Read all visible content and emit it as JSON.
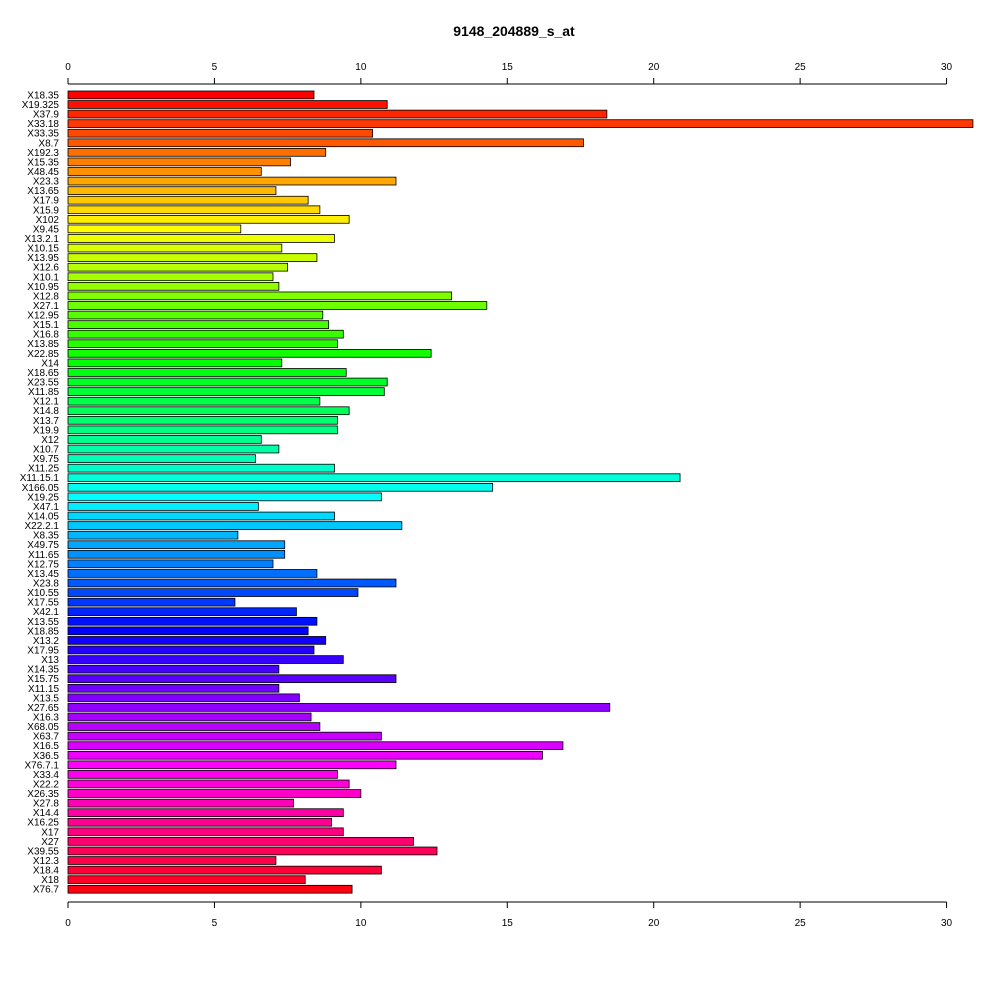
{
  "chart_data": {
    "type": "bar",
    "orientation": "horizontal",
    "title": "9148_204889_s_at",
    "xlabel": "",
    "ylabel": "",
    "xlim": [
      0,
      30.8
    ],
    "x_ticks": [
      0,
      5,
      10,
      15,
      20,
      25,
      30
    ],
    "axes": [
      "top",
      "bottom"
    ],
    "grid": false,
    "legend": "none",
    "color_scheme": "rainbow",
    "categories": [
      "X18.35",
      "X19.325",
      "X37.9",
      "X33.18",
      "X33.35",
      "X8.7",
      "X192.3",
      "X15.35",
      "X48.45",
      "X23.3",
      "X13.65",
      "X17.9",
      "X15.9",
      "X102",
      "X9.45",
      "X13.2.1",
      "X10.15",
      "X13.95",
      "X12.6",
      "X10.1",
      "X10.95",
      "X12.8",
      "X27.1",
      "X12.95",
      "X15.1",
      "X16.8",
      "X13.85",
      "X22.85",
      "X14",
      "X18.65",
      "X23.55",
      "X11.85",
      "X12.1",
      "X14.8",
      "X13.7",
      "X19.9",
      "X12",
      "X10.7",
      "X9.75",
      "X11.25",
      "X11.15.1",
      "X166.05",
      "X19.25",
      "X47.1",
      "X14.05",
      "X22.2.1",
      "X8.35",
      "X49.75",
      "X11.65",
      "X12.75",
      "X13.45",
      "X23.8",
      "X10.55",
      "X17.55",
      "X42.1",
      "X13.55",
      "X18.85",
      "X13.2",
      "X17.95",
      "X13",
      "X14.35",
      "X15.75",
      "X11.15",
      "X13.5",
      "X27.65",
      "X16.3",
      "X68.05",
      "X63.7",
      "X16.5",
      "X36.5",
      "X76.7.1",
      "X33.4",
      "X22.2",
      "X26.35",
      "X27.8",
      "X14.4",
      "X16.25",
      "X17",
      "X27",
      "X39.55",
      "X12.3",
      "X18.4",
      "X18",
      "X76.7"
    ],
    "values": [
      8.4,
      10.9,
      18.4,
      30.9,
      10.4,
      17.6,
      8.8,
      7.6,
      6.6,
      11.2,
      7.1,
      8.2,
      8.6,
      9.6,
      5.9,
      9.1,
      7.3,
      8.5,
      7.5,
      7.0,
      7.2,
      13.1,
      14.3,
      8.7,
      8.9,
      9.4,
      9.2,
      12.4,
      7.3,
      9.5,
      10.9,
      10.8,
      8.6,
      9.6,
      9.2,
      9.2,
      6.6,
      7.2,
      6.4,
      9.1,
      20.9,
      14.5,
      10.7,
      6.5,
      9.1,
      11.4,
      5.8,
      7.4,
      7.4,
      7.0,
      8.5,
      11.2,
      9.9,
      5.7,
      7.8,
      8.5,
      8.2,
      8.8,
      8.4,
      9.4,
      7.2,
      11.2,
      7.2,
      7.9,
      18.5,
      8.3,
      8.6,
      10.7,
      16.9,
      16.2,
      11.2,
      9.2,
      9.6,
      10.0,
      7.7,
      9.4,
      9.0,
      9.4,
      11.8,
      12.6,
      7.1,
      10.7,
      8.1,
      9.7
    ]
  }
}
